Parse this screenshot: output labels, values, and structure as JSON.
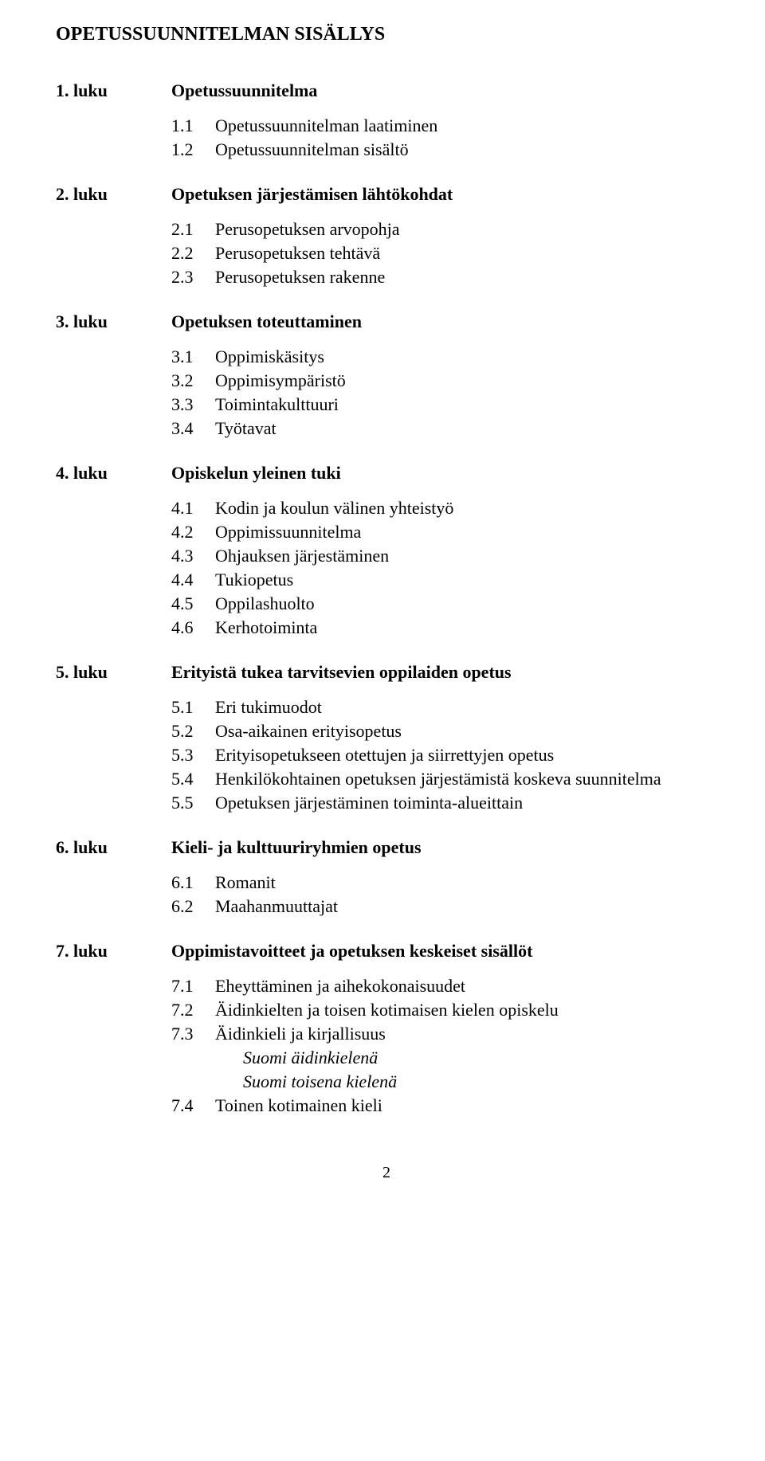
{
  "title": "OPETUSSUUNNITELMAN SISÄLLYS",
  "pageNumber": "2",
  "chapters": [
    {
      "label": "1. luku",
      "title": "Opetussuunnitelma",
      "items": [
        {
          "num": "1.1",
          "text": "Opetussuunnitelman laatiminen"
        },
        {
          "num": "1.2",
          "text": "Opetussuunnitelman sisältö"
        }
      ]
    },
    {
      "label": "2. luku",
      "title": "Opetuksen järjestämisen lähtökohdat",
      "items": [
        {
          "num": "2.1",
          "text": "Perusopetuksen arvopohja"
        },
        {
          "num": "2.2",
          "text": "Perusopetuksen tehtävä"
        },
        {
          "num": "2.3",
          "text": "Perusopetuksen rakenne"
        }
      ]
    },
    {
      "label": "3. luku",
      "title": "Opetuksen toteuttaminen",
      "items": [
        {
          "num": "3.1",
          "text": "Oppimiskäsitys"
        },
        {
          "num": "3.2",
          "text": "Oppimisympäristö"
        },
        {
          "num": "3.3",
          "text": "Toimintakulttuuri"
        },
        {
          "num": "3.4",
          "text": "Työtavat"
        }
      ]
    },
    {
      "label": "4. luku",
      "title": "Opiskelun yleinen tuki",
      "items": [
        {
          "num": "4.1",
          "text": "Kodin ja koulun välinen yhteistyö"
        },
        {
          "num": "4.2",
          "text": "Oppimissuunnitelma"
        },
        {
          "num": "4.3",
          "text": "Ohjauksen järjestäminen"
        },
        {
          "num": "4.4",
          "text": "Tukiopetus"
        },
        {
          "num": "4.5",
          "text": "Oppilashuolto"
        },
        {
          "num": "4.6",
          "text": "Kerhotoiminta"
        }
      ]
    },
    {
      "label": "5. luku",
      "title": "Erityistä tukea tarvitsevien oppilaiden opetus",
      "items": [
        {
          "num": "5.1",
          "text": "Eri tukimuodot"
        },
        {
          "num": "5.2",
          "text": "Osa-aikainen erityisopetus"
        },
        {
          "num": "5.3",
          "text": "Erityisopetukseen otettujen ja siirrettyjen opetus"
        },
        {
          "num": "5.4",
          "text": "Henkilökohtainen opetuksen järjestämistä koskeva suunnitelma"
        },
        {
          "num": "5.5",
          "text": "Opetuksen järjestäminen toiminta-alueittain"
        }
      ]
    },
    {
      "label": "6. luku",
      "title": "Kieli- ja kulttuuriryhmien opetus",
      "items": [
        {
          "num": "6.1",
          "text": "Romanit"
        },
        {
          "num": "6.2",
          "text": "Maahanmuuttajat"
        }
      ]
    },
    {
      "label": "7. luku",
      "title": "Oppimistavoitteet ja opetuksen keskeiset sisällöt",
      "items": [
        {
          "num": "7.1",
          "text": "Eheyttäminen ja aihekokonaisuudet"
        },
        {
          "num": "7.2",
          "text": "Äidinkielten ja toisen kotimaisen kielen opiskelu"
        },
        {
          "num": "7.3",
          "text": "Äidinkieli ja kirjallisuus",
          "sub": [
            {
              "text": "Suomi äidinkielenä"
            },
            {
              "text": "Suomi toisena kielenä"
            }
          ]
        },
        {
          "num": "7.4",
          "text": "Toinen kotimainen kieli"
        }
      ]
    }
  ]
}
